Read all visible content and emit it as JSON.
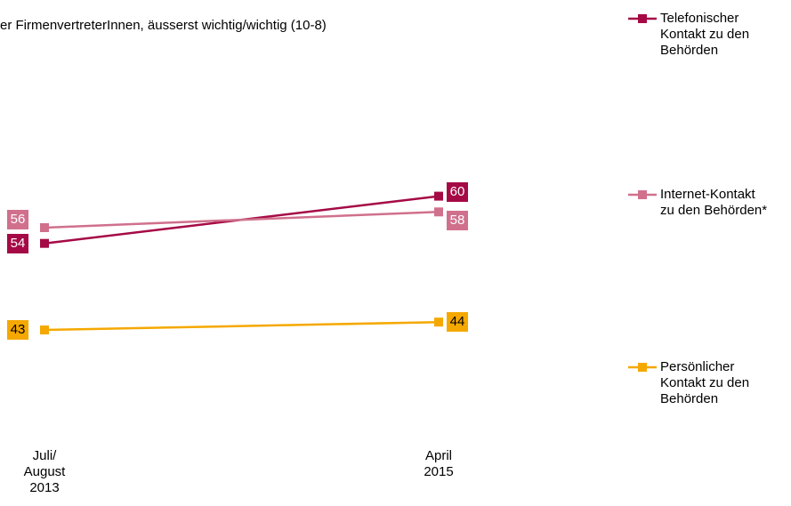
{
  "chart_data": {
    "type": "line",
    "subtitle": "er FirmenvertreterInnen, äusserst wichtig/wichtig (10-8)",
    "categories": [
      "Juli/ August 2013",
      "April 2015"
    ],
    "series": [
      {
        "name": "Telefonischer Kontakt zu den Behörden",
        "color": "#a50a46",
        "values": [
          54,
          60
        ]
      },
      {
        "name": "Internet-Kontakt zu den Behörden*",
        "color": "#d0708c",
        "values": [
          56,
          58
        ]
      },
      {
        "name": "Persönlicher Kontakt zu den Behörden",
        "color": "#f5a800",
        "values": [
          43,
          44
        ]
      }
    ]
  }
}
